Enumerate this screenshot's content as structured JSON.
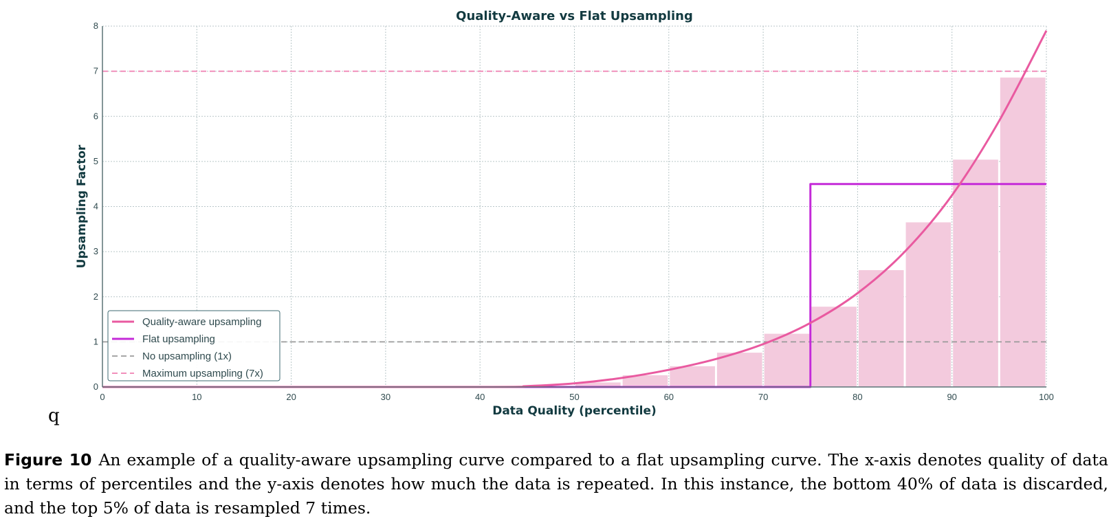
{
  "chart_data": {
    "type": "line",
    "title": "Quality-Aware vs Flat Upsampling",
    "xlabel": "Data Quality (percentile)",
    "ylabel": "Upsampling Factor",
    "xlim": [
      0,
      100
    ],
    "ylim": [
      0,
      8
    ],
    "x_ticks": [
      "0",
      "10",
      "20",
      "30",
      "40",
      "50",
      "60",
      "70",
      "80",
      "90",
      "100"
    ],
    "y_ticks": [
      "0",
      "1",
      "2",
      "3",
      "4",
      "5",
      "6",
      "7",
      "8"
    ],
    "grid": true,
    "legend_position": "lower-left",
    "colors": {
      "quality_curve": "#e95aa0",
      "flat": "#c42ad8",
      "no_upsampling": "#9a9a9a",
      "maximum": "#ef7fb1",
      "bars": "#f3cadd",
      "grid": "#b8c6c8",
      "axis": "#5b7377"
    },
    "bars": {
      "bin_width": 5,
      "x_centers": [
        42.5,
        47.5,
        52.5,
        57.5,
        62.5,
        67.5,
        72.5,
        77.5,
        82.5,
        87.5,
        92.5,
        97.5
      ],
      "values": [
        0.0,
        0.02,
        0.1,
        0.26,
        0.46,
        0.76,
        1.18,
        1.78,
        2.59,
        3.65,
        5.04,
        6.86
      ]
    },
    "series": [
      {
        "name": "Quality-aware upsampling",
        "style": "solid",
        "x": [
          0,
          40,
          45,
          50,
          55,
          60,
          65,
          70,
          75,
          80,
          85,
          90,
          95,
          100
        ],
        "y": [
          0,
          0,
          0.02,
          0.08,
          0.2,
          0.38,
          0.62,
          0.95,
          1.42,
          2.08,
          3.0,
          4.25,
          5.9,
          7.9
        ]
      },
      {
        "name": "Flat upsampling",
        "style": "solid",
        "x": [
          0,
          75,
          75,
          100
        ],
        "y": [
          0,
          0,
          4.5,
          4.5
        ]
      },
      {
        "name": "No upsampling (1x)",
        "style": "dashed",
        "x": [
          0,
          100
        ],
        "y": [
          1,
          1
        ]
      },
      {
        "name": "Maximum upsampling (7x)",
        "style": "dashed",
        "x": [
          0,
          100
        ],
        "y": [
          7,
          7
        ]
      }
    ]
  },
  "stray_mark": "q",
  "caption": {
    "label": "Figure 10",
    "text": "An example of a quality-aware upsampling curve compared to a flat upsampling curve. The x-axis denotes quality of data in terms of percentiles and the y-axis denotes how much the data is repeated. In this instance, the bottom 40% of data is discarded, and the top 5% of data is resampled 7 times."
  }
}
